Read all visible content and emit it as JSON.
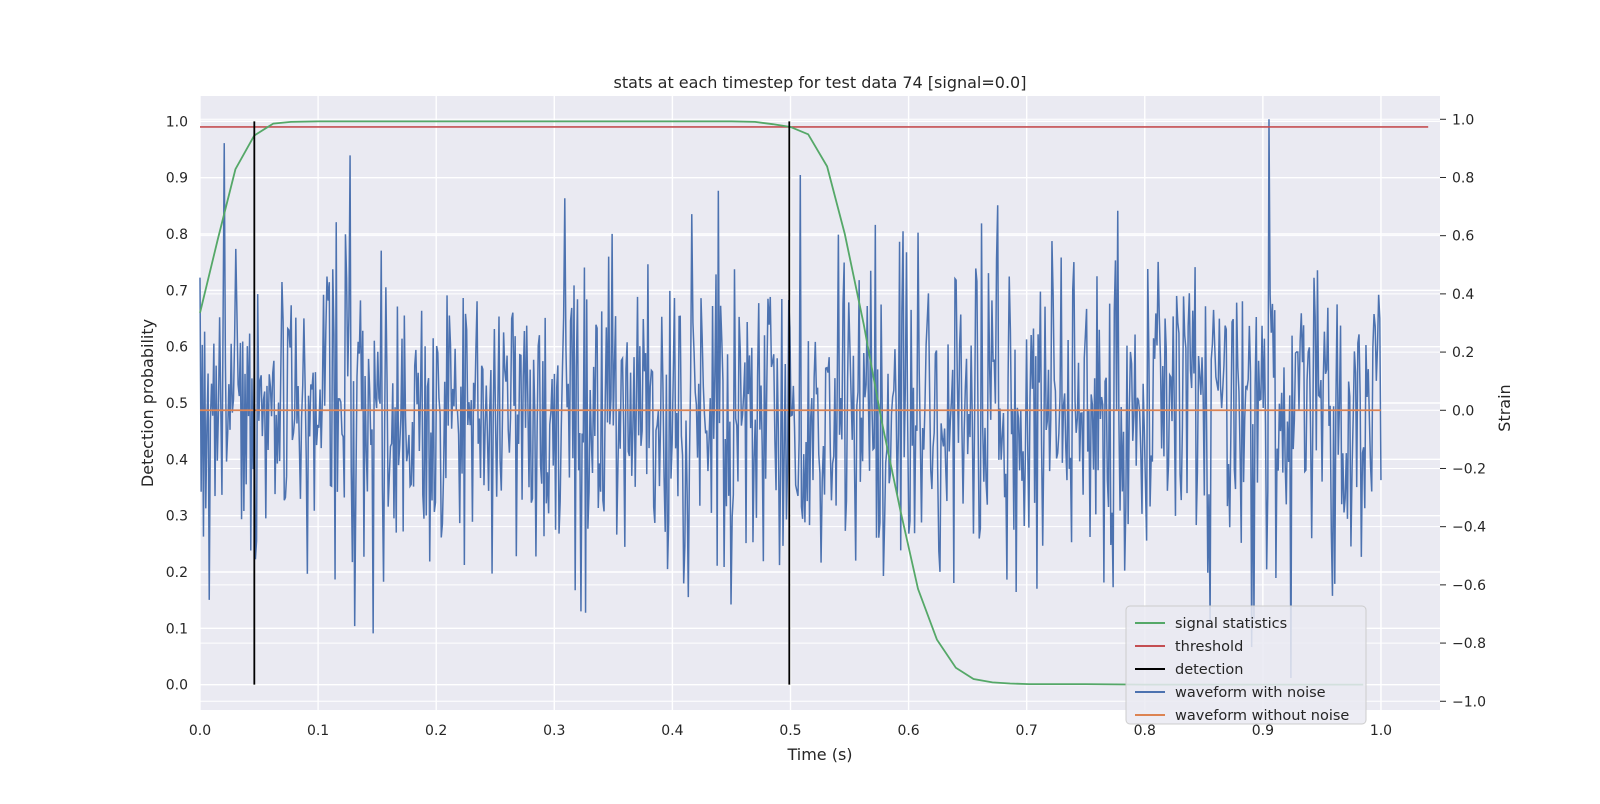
{
  "chart_data": {
    "type": "line",
    "title": "stats at each timestep for test data 74 [signal=0.0]",
    "xlabel": "Time (s)",
    "ylabel_left": "Detection probability",
    "ylabel_right": "Strain",
    "xlim": [
      0.0,
      1.05
    ],
    "ylim_left": [
      -0.045,
      1.045
    ],
    "ylim_right": [
      -1.03,
      1.08
    ],
    "xticks": [
      "0.0",
      "0.1",
      "0.2",
      "0.3",
      "0.4",
      "0.5",
      "0.6",
      "0.7",
      "0.8",
      "0.9",
      "1.0"
    ],
    "yticks_left": [
      "0.0",
      "0.1",
      "0.2",
      "0.3",
      "0.4",
      "0.5",
      "0.6",
      "0.7",
      "0.8",
      "0.9",
      "1.0"
    ],
    "yticks_right": [
      "−1.0",
      "−0.8",
      "−0.6",
      "−0.4",
      "−0.2",
      "0.0",
      "0.2",
      "0.4",
      "0.6",
      "0.8",
      "1.0"
    ],
    "grid": true,
    "legend_placement": "lower-right",
    "colors": {
      "signal_statistics": "#55a868",
      "threshold": "#c44e52",
      "detection": "#000000",
      "waveform_with_noise": "#4c72b0",
      "waveform_without_noise": "#dd8452",
      "plot_background": "#eaeaf2"
    },
    "series": [
      {
        "name": "signal statistics",
        "axis": "left",
        "x": [
          0.0,
          0.015,
          0.03,
          0.046,
          0.062,
          0.077,
          0.1,
          0.2,
          0.3,
          0.4,
          0.45,
          0.47,
          0.485,
          0.5,
          0.515,
          0.531,
          0.546,
          0.562,
          0.577,
          0.593,
          0.608,
          0.624,
          0.64,
          0.655,
          0.671,
          0.686,
          0.702,
          0.75,
          0.8,
          0.85,
          0.9,
          0.95,
          0.985
        ],
        "values": [
          0.66,
          0.79,
          0.915,
          0.975,
          0.996,
          0.999,
          1.0,
          1.0,
          1.0,
          1.0,
          1.0,
          0.999,
          0.995,
          0.99,
          0.977,
          0.92,
          0.8,
          0.64,
          0.47,
          0.31,
          0.17,
          0.08,
          0.03,
          0.01,
          0.004,
          0.002,
          0.001,
          0.001,
          0.0,
          0.0,
          0.0,
          0.0,
          0.0
        ]
      },
      {
        "name": "threshold",
        "axis": "left",
        "x": [
          0.0,
          1.04
        ],
        "values": [
          0.99,
          0.99
        ]
      },
      {
        "name": "detection",
        "axis": "left",
        "vlines": [
          0.046,
          0.499
        ],
        "range": [
          0.0,
          1.0
        ]
      },
      {
        "name": "waveform with noise",
        "axis": "right",
        "x_start": 0.0,
        "x_end": 1.0,
        "n_points": 1024,
        "peak": {
          "x": 0.905,
          "value": 1.0
        },
        "values_range": [
          -0.92,
          1.0
        ],
        "std_approx": 0.28
      },
      {
        "name": "waveform without noise",
        "axis": "right",
        "x": [
          0.0,
          1.0
        ],
        "values": [
          0.0,
          0.0
        ]
      }
    ]
  }
}
